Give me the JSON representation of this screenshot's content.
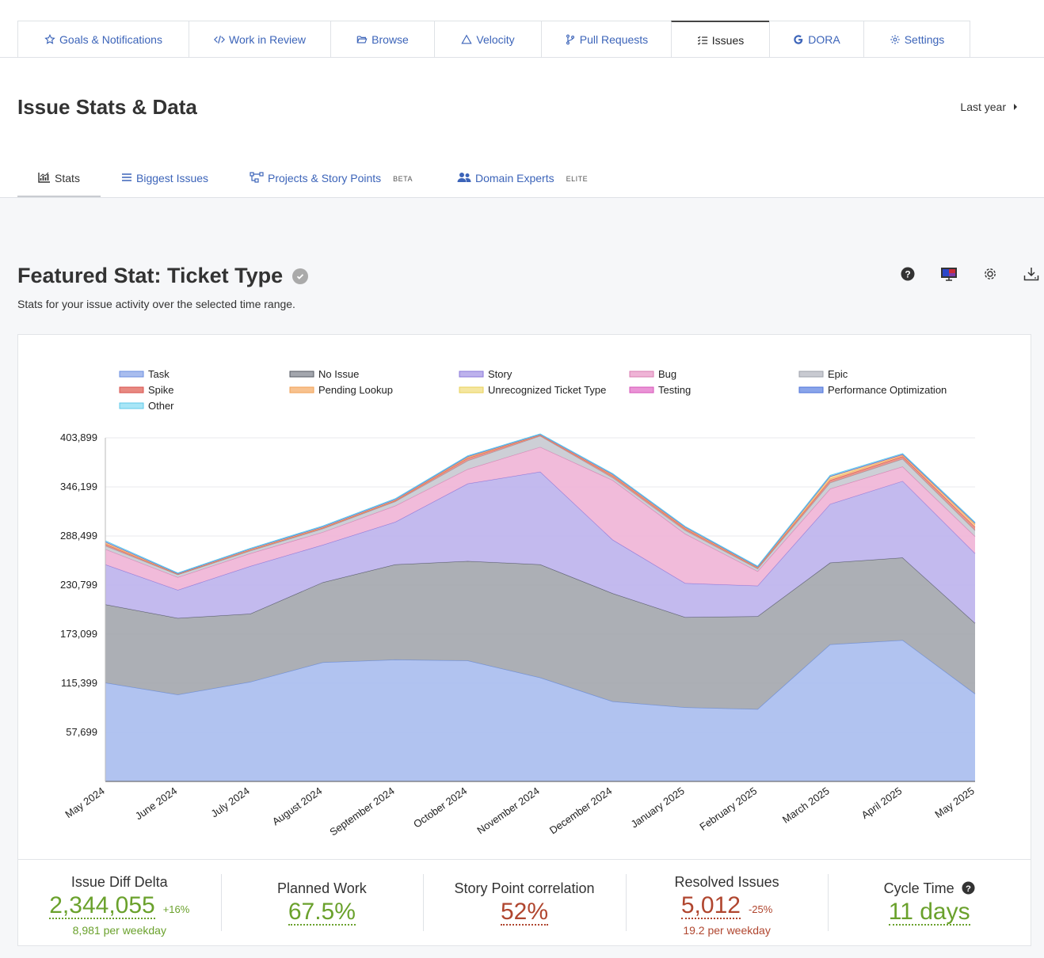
{
  "nav": {
    "tabs": [
      {
        "label": "Goals & Notifications",
        "icon": "star-icon"
      },
      {
        "label": "Work in Review",
        "icon": "code-icon"
      },
      {
        "label": "Browse",
        "icon": "folder-open-icon"
      },
      {
        "label": "Velocity",
        "icon": "triangle-icon"
      },
      {
        "label": "Pull Requests",
        "icon": "branch-icon"
      },
      {
        "label": "Issues",
        "icon": "list-check-icon",
        "active": true
      },
      {
        "label": "DORA",
        "icon": "google-g-icon"
      },
      {
        "label": "Settings",
        "icon": "gear-icon"
      }
    ]
  },
  "page": {
    "title": "Issue Stats & Data",
    "range_label": "Last year"
  },
  "sub_tabs": [
    {
      "label": "Stats",
      "icon": "chart-icon",
      "badge": "",
      "active": true
    },
    {
      "label": "Biggest Issues",
      "icon": "lines-icon",
      "badge": ""
    },
    {
      "label": "Projects & Story Points",
      "icon": "sitemap-icon",
      "badge": "BETA"
    },
    {
      "label": "Domain Experts",
      "icon": "users-icon",
      "badge": "ELITE"
    }
  ],
  "featured": {
    "title": "Featured Stat: Ticket Type",
    "description": "Stats for your issue activity over the selected time range."
  },
  "toolbar": {
    "icons": [
      "help-icon",
      "monitor-icon",
      "gear-icon",
      "download-icon"
    ]
  },
  "chart_data": {
    "type": "area",
    "stacked": true,
    "x": [
      "May 2024",
      "June 2024",
      "July 2024",
      "August 2024",
      "September 2024",
      "October 2024",
      "November 2024",
      "December 2024",
      "January 2025",
      "February 2025",
      "March 2025",
      "April 2025",
      "May 2025"
    ],
    "y_ticks": [
      "57,699",
      "115,399",
      "173,099",
      "230,799",
      "288,499",
      "346,199",
      "403,899"
    ],
    "ylim": [
      0,
      403899
    ],
    "legend_position": "top",
    "grid": true,
    "series": [
      {
        "name": "Task",
        "color": "#a9bdee",
        "line": "#6b8fe0",
        "values": [
          116000,
          102000,
          117000,
          140000,
          143000,
          142000,
          122000,
          94000,
          87000,
          85000,
          161000,
          166000,
          103000
        ]
      },
      {
        "name": "No Issue",
        "color": "#a3a6ad",
        "line": "#555a63",
        "values": [
          92000,
          90000,
          80000,
          94000,
          112000,
          117000,
          133000,
          127000,
          106000,
          109000,
          96000,
          97000,
          83000
        ]
      },
      {
        "name": "Story",
        "color": "#bdb2ec",
        "line": "#8a78da",
        "values": [
          47000,
          33000,
          56000,
          44000,
          50000,
          91000,
          109000,
          63000,
          40000,
          36000,
          69000,
          90000,
          82000
        ]
      },
      {
        "name": "Bug",
        "color": "#efb4d6",
        "line": "#d97eb2",
        "values": [
          18000,
          15000,
          15000,
          15000,
          19000,
          17000,
          29000,
          70000,
          58000,
          17000,
          18000,
          17000,
          20000
        ]
      },
      {
        "name": "Epic",
        "color": "#c8cad1",
        "line": "#9ea2ab",
        "values": [
          4000,
          3000,
          3000,
          4000,
          5000,
          10000,
          13000,
          3000,
          4000,
          3000,
          7000,
          9000,
          7000
        ]
      },
      {
        "name": "Spike",
        "color": "#e88a82",
        "line": "#d9534f",
        "values": [
          2000,
          500,
          1000,
          1000,
          1000,
          3000,
          1000,
          2000,
          2000,
          1000,
          3000,
          3000,
          4000
        ]
      },
      {
        "name": "Pending Lookup",
        "color": "#f8c28f",
        "line": "#f0a257",
        "values": [
          1000,
          300,
          500,
          500,
          500,
          1000,
          300,
          1000,
          1000,
          500,
          2000,
          1500,
          3000
        ]
      },
      {
        "name": "Unrecognized Ticket Type",
        "color": "#f5e6a0",
        "line": "#e8d25a",
        "values": [
          1000,
          300,
          500,
          500,
          500,
          500,
          300,
          500,
          500,
          500,
          2000,
          500,
          1000
        ]
      },
      {
        "name": "Testing",
        "color": "#ea94d6",
        "line": "#d555b8",
        "values": [
          500,
          200,
          200,
          300,
          300,
          300,
          200,
          300,
          300,
          200,
          500,
          300,
          500
        ]
      },
      {
        "name": "Performance Optimization",
        "color": "#8aa5ea",
        "line": "#4f73d9",
        "values": [
          300,
          200,
          200,
          300,
          300,
          300,
          200,
          300,
          300,
          200,
          300,
          300,
          300
        ]
      },
      {
        "name": "Other",
        "color": "#a8e6f7",
        "line": "#5fc9ea",
        "values": [
          1000,
          500,
          600,
          700,
          700,
          700,
          500,
          700,
          700,
          600,
          1000,
          800,
          800
        ]
      }
    ]
  },
  "stats": {
    "issue_diff": {
      "label": "Issue Diff Delta",
      "value": "2,344,055",
      "delta": "+16%",
      "sub": "8,981 per weekday"
    },
    "planned_work": {
      "label": "Planned Work",
      "value": "67.5%"
    },
    "story_point": {
      "label": "Story Point correlation",
      "value": "52%"
    },
    "resolved": {
      "label": "Resolved Issues",
      "value": "5,012",
      "delta": "-25%",
      "sub": "19.2 per weekday"
    },
    "cycle_time": {
      "label": "Cycle Time",
      "value": "11 days"
    }
  }
}
